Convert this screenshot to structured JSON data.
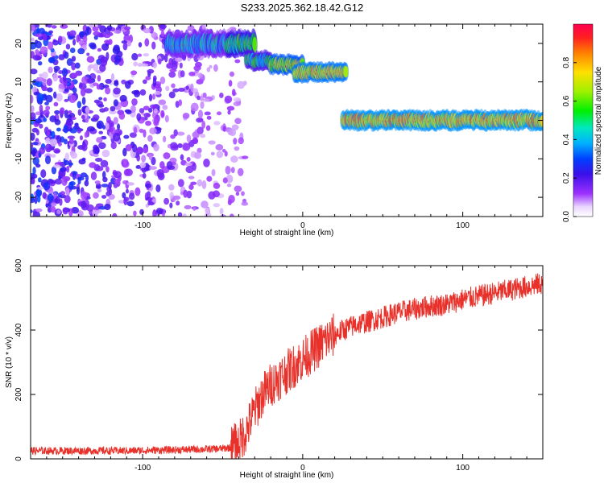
{
  "title": "S233.2025.362.18.42.G12",
  "chart_data": [
    {
      "type": "heatmap",
      "xlabel": "Height of straight line (km)",
      "ylabel": "Frequency (Hz)",
      "xlim": [
        -170,
        150
      ],
      "ylim": [
        -25,
        25
      ],
      "xticks": [
        -100,
        0,
        100
      ],
      "yticks": [
        -20,
        -10,
        0,
        10,
        20
      ],
      "colorbar": {
        "label": "Normalized spectral amplitude",
        "range": [
          0,
          1
        ],
        "ticks": [
          "0.0",
          "0.2",
          "0.4",
          "0.6",
          "0.8"
        ]
      },
      "bands": [
        {
          "x": [
            -85,
            -45
          ],
          "y": [
            18,
            22
          ],
          "level": 0.35
        },
        {
          "x": [
            -47,
            -30
          ],
          "y": [
            18,
            22
          ],
          "level": 0.5
        },
        {
          "x": [
            -35,
            -20
          ],
          "y": [
            14,
            17
          ],
          "level": 0.45
        },
        {
          "x": [
            -20,
            0
          ],
          "y": [
            13,
            16
          ],
          "level": 0.7
        },
        {
          "x": [
            -5,
            27
          ],
          "y": [
            11,
            14
          ],
          "level": 0.75
        },
        {
          "x": [
            25,
            150
          ],
          "y": [
            -1.5,
            1.5
          ],
          "level": 0.8
        }
      ]
    },
    {
      "type": "line",
      "xlabel": "Height of straight line (km)",
      "ylabel": "SNR (10 * v/v)",
      "xlim": [
        -170,
        150
      ],
      "ylim": [
        0,
        600
      ],
      "xticks": [
        -100,
        0,
        100
      ],
      "yticks": [
        0,
        200,
        400,
        600
      ],
      "color": "#e8312a",
      "x": [
        -170,
        -140,
        -110,
        -80,
        -60,
        -50,
        -45,
        -40,
        -35,
        -30,
        -25,
        -20,
        -15,
        -10,
        -5,
        0,
        5,
        10,
        15,
        20,
        25,
        30,
        35,
        40,
        50,
        60,
        70,
        80,
        90,
        100,
        110,
        120,
        130,
        140,
        150
      ],
      "values": [
        25,
        25,
        25,
        28,
        30,
        32,
        35,
        50,
        90,
        150,
        200,
        230,
        250,
        270,
        290,
        310,
        330,
        350,
        370,
        385,
        400,
        410,
        420,
        425,
        440,
        455,
        465,
        475,
        480,
        495,
        505,
        515,
        525,
        535,
        545
      ]
    }
  ]
}
